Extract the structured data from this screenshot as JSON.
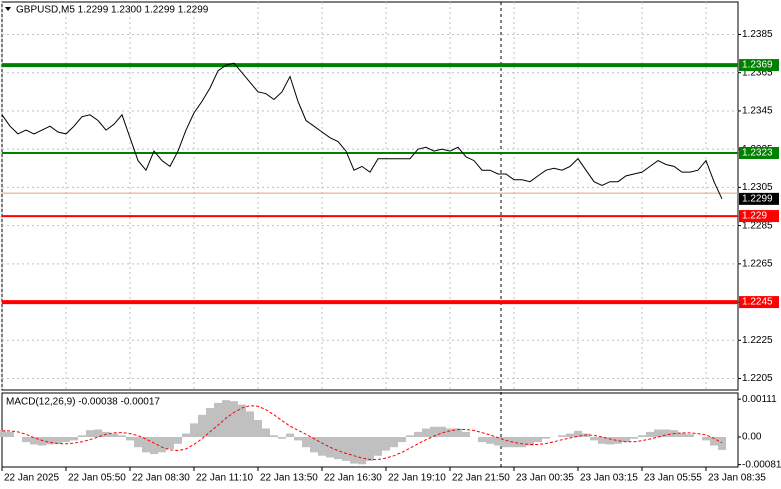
{
  "chart_data": [
    {
      "type": "line",
      "title": "GBPUSD,M5  1.2299 1.2300 1.2299 1.2299",
      "categories": [
        "22 Jan 2025",
        null,
        null,
        null,
        null,
        null,
        null,
        null,
        "22 Jan 05:50",
        null,
        null,
        null,
        null,
        null,
        null,
        null,
        "22 Jan 08:30",
        null,
        null,
        null,
        null,
        null,
        null,
        null,
        "22 Jan 11:10",
        null,
        null,
        null,
        null,
        null,
        null,
        null,
        "22 Jan 13:50",
        null,
        null,
        null,
        null,
        null,
        null,
        null,
        "22 Jan 16:30",
        null,
        null,
        null,
        null,
        null,
        null,
        null,
        "22 Jan 19:10",
        null,
        null,
        null,
        null,
        null,
        null,
        null,
        "22 Jan 21:50",
        null,
        null,
        null,
        null,
        null,
        null,
        null,
        "23 Jan 00:35",
        null,
        null,
        null,
        null,
        null,
        null,
        null,
        "23 Jan 03:15",
        null,
        null,
        null,
        null,
        null,
        null,
        null,
        "23 Jan 05:55",
        null,
        null,
        null,
        null,
        null,
        null,
        null,
        "23 Jan 08:35",
        null,
        null
      ],
      "values": [
        1.2343,
        1.2337,
        1.2333,
        1.2335,
        1.2333,
        1.2335,
        1.2337,
        1.2334,
        1.2333,
        1.2337,
        1.2342,
        1.2343,
        1.234,
        1.2335,
        1.2338,
        1.2343,
        1.2331,
        1.2319,
        1.2314,
        1.2324,
        1.2319,
        1.2316,
        1.2324,
        1.2335,
        1.2344,
        1.235,
        1.2357,
        1.2366,
        1.2369,
        1.237,
        1.2365,
        1.236,
        1.2355,
        1.2354,
        1.2351,
        1.2355,
        1.2363,
        1.235,
        1.234,
        1.2337,
        1.2334,
        1.2331,
        1.2329,
        1.2324,
        1.2314,
        1.2316,
        1.2313,
        1.232,
        1.232,
        1.232,
        1.232,
        1.232,
        1.2325,
        1.2326,
        1.2324,
        1.2325,
        1.2324,
        1.2326,
        1.2321,
        1.2319,
        1.2314,
        1.2314,
        1.2312,
        1.2312,
        1.2309,
        1.2309,
        1.2308,
        1.2311,
        1.2314,
        1.2315,
        1.2314,
        1.2316,
        1.232,
        1.2314,
        1.2308,
        1.2306,
        1.2308,
        1.2308,
        1.2311,
        1.2312,
        1.2313,
        1.2316,
        1.2319,
        1.2317,
        1.2316,
        1.2313,
        1.2313,
        1.2314,
        1.2319,
        1.2308,
        1.2299
      ],
      "color": "#000000",
      "ylim": [
        1.2199,
        1.2402
      ],
      "yticks": [
        1.2205,
        1.2225,
        1.2245,
        1.2265,
        1.2285,
        1.2305,
        1.2325,
        1.2345,
        1.2365,
        1.2385
      ],
      "grid": true,
      "ask_line": {
        "value": 1.2302,
        "color": "#e8a070"
      },
      "levels": [
        {
          "value": 1.2369,
          "color": "#008000",
          "thick": true
        },
        {
          "value": 1.2323,
          "color": "#008000",
          "thick": false
        },
        {
          "value": 1.229,
          "color": "#ff0000",
          "thick": false
        },
        {
          "value": 1.2245,
          "color": "#ff0000",
          "thick": true
        }
      ],
      "last_price": 1.2299
    },
    {
      "type": "macd",
      "title": "MACD(12,26,9) -0.00038 -0.00017",
      "series": [
        {
          "type": "bar",
          "color": "#c0c0c0",
          "values": [
            0.0002,
            0.00015,
            0.0,
            -0.00015,
            -0.00022,
            -0.00025,
            -0.00022,
            -0.0002,
            -0.00015,
            -0.0001,
            5e-05,
            0.0002,
            0.00022,
            0.00015,
            0.0001,
            5e-05,
            -0.0001,
            -0.0003,
            -0.00045,
            -0.0005,
            -0.00045,
            -0.00035,
            -0.0002,
            0.0001,
            0.0004,
            0.00065,
            0.00085,
            0.001,
            0.00108,
            0.00105,
            0.00095,
            0.00075,
            0.0005,
            0.00025,
            5e-05,
            -5e-05,
            0.0001,
            -0.0001,
            -0.0003,
            -0.00045,
            -0.00055,
            -0.0006,
            -0.00065,
            -0.0007,
            -0.00078,
            -0.0008,
            -0.0007,
            -0.00055,
            -0.0004,
            -0.0003,
            -0.00015,
            5e-05,
            0.00015,
            0.00025,
            0.0003,
            0.0003,
            0.00025,
            0.00025,
            0.00015,
            0.0,
            -0.00015,
            -0.0002,
            -0.00025,
            -0.0003,
            -0.0003,
            -0.0003,
            -0.00025,
            -0.00015,
            -5e-05,
            0.0,
            5e-05,
            0.0001,
            0.00018,
            0.0001,
            -0.0001,
            -0.0002,
            -0.00022,
            -0.0002,
            -0.00015,
            -5e-05,
            5e-05,
            0.00015,
            0.00022,
            0.00022,
            0.0002,
            0.00012,
            8e-05,
            0.0,
            -0.0001,
            -0.00025,
            -0.00038
          ]
        },
        {
          "type": "line",
          "color": "#ff0000",
          "dashed": true,
          "values": [
            0.00018,
            0.00018,
            0.00015,
            8e-05,
            -2e-05,
            -0.0001,
            -0.00016,
            -0.00019,
            -0.0002,
            -0.00018,
            -0.00014,
            -8e-05,
            0.0,
            8e-05,
            0.00012,
            0.00013,
            0.0001,
            4e-05,
            -6e-05,
            -0.00018,
            -0.0003,
            -0.00038,
            -0.0004,
            -0.00035,
            -0.00022,
            -5e-05,
            0.00015,
            0.00035,
            0.00055,
            0.00072,
            0.00085,
            0.00092,
            0.0009,
            0.0008,
            0.00065,
            0.00048,
            0.00032,
            0.0002,
            8e-05,
            -5e-05,
            -0.00018,
            -0.0003,
            -0.0004,
            -0.00048,
            -0.00055,
            -0.00062,
            -0.00066,
            -0.00066,
            -0.00062,
            -0.00055,
            -0.00045,
            -0.00033,
            -0.0002,
            -8e-05,
            3e-05,
            0.00012,
            0.00018,
            0.00022,
            0.00022,
            0.00019,
            0.00013,
            6e-05,
            -2e-05,
            -0.0001,
            -0.00016,
            -0.0002,
            -0.00022,
            -0.00022,
            -0.00019,
            -0.00014,
            -8e-05,
            -3e-05,
            2e-05,
            6e-05,
            5e-05,
            0.0,
            -6e-05,
            -0.00011,
            -0.00014,
            -0.00014,
            -0.00011,
            -6e-05,
            0.0,
            6e-05,
            0.0001,
            0.00012,
            0.00012,
            0.0001,
            6e-05,
            -4e-05,
            -0.00017
          ]
        }
      ],
      "ylim": [
        -0.00088,
        0.00129
      ],
      "yticks": [
        -0.00081,
        {
          "value": 0,
          "label": "0.00"
        },
        0.00111
      ]
    }
  ]
}
